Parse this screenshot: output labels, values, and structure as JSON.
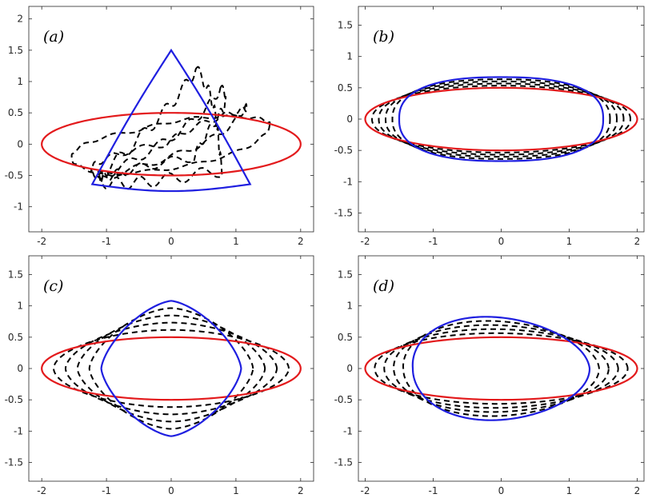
{
  "chart_data": [
    {
      "type": "line",
      "panel_label": "(a)",
      "xlim": [
        -2.2,
        2.2
      ],
      "ylim": [
        -1.4,
        2.2
      ],
      "xticks": [
        -2,
        -1,
        0,
        1,
        2
      ],
      "yticks": [
        -1,
        -0.5,
        0,
        0.5,
        1,
        1.5,
        2
      ],
      "xtick_labels": [
        "-2",
        "-1",
        "0",
        "1",
        "2"
      ],
      "ytick_labels": [
        "-1",
        "-0.5",
        "0",
        "0.5",
        "1",
        "1.5",
        "2"
      ],
      "grid": false,
      "legend": "none",
      "ellipse": {
        "center": [
          0,
          0
        ],
        "a": 2.0,
        "b": 0.5,
        "color": "#e31a1c"
      },
      "target_shape": {
        "kind": "triangle",
        "vertices": [
          [
            0,
            1.5
          ],
          [
            -1.22,
            -0.64
          ],
          [
            1.22,
            -0.64
          ]
        ],
        "bottom_dip": -0.75,
        "color": "#1f1fe0"
      },
      "intermediate_shapes": {
        "count": 4,
        "style": "dashed",
        "color": "#000000"
      }
    },
    {
      "type": "line",
      "panel_label": "(b)",
      "xlim": [
        -2.1,
        2.1
      ],
      "ylim": [
        -1.8,
        1.8
      ],
      "xticks": [
        -2,
        -1,
        0,
        1,
        2
      ],
      "yticks": [
        -1.5,
        -1,
        -0.5,
        0,
        0.5,
        1,
        1.5
      ],
      "xtick_labels": [
        "-2",
        "-1",
        "0",
        "1",
        "2"
      ],
      "ytick_labels": [
        "-1.5",
        "-1",
        "-0.5",
        "0",
        "0.5",
        "1",
        "1.5"
      ],
      "grid": false,
      "legend": "none",
      "ellipse": {
        "center": [
          0,
          0
        ],
        "a": 2.0,
        "b": 0.5,
        "color": "#e31a1c"
      },
      "target_shape": {
        "kind": "rounded-ellipse",
        "a": 1.5,
        "b": 0.67,
        "color": "#1f1fe0"
      },
      "intermediate_shapes": {
        "count": 4,
        "style": "dashed",
        "color": "#000000"
      }
    },
    {
      "type": "line",
      "panel_label": "(c)",
      "xlim": [
        -2.2,
        2.2
      ],
      "ylim": [
        -1.8,
        1.8
      ],
      "xticks": [
        -2,
        -1,
        0,
        1,
        2
      ],
      "yticks": [
        -1.5,
        -1,
        -0.5,
        0,
        0.5,
        1,
        1.5
      ],
      "xtick_labels": [
        "-2",
        "-1",
        "0",
        "1",
        "2"
      ],
      "ytick_labels": [
        "-1.5",
        "-1",
        "-0.5",
        "0",
        "0.5",
        "1",
        "1.5"
      ],
      "grid": false,
      "legend": "none",
      "ellipse": {
        "center": [
          0,
          0
        ],
        "a": 2.0,
        "b": 0.5,
        "color": "#e31a1c"
      },
      "target_shape": {
        "kind": "astroid-like",
        "a": 1.08,
        "b": 1.08,
        "color": "#1f1fe0"
      },
      "intermediate_shapes": {
        "count": 4,
        "style": "dashed",
        "color": "#000000"
      }
    },
    {
      "type": "line",
      "panel_label": "(d)",
      "xlim": [
        -2.1,
        2.1
      ],
      "ylim": [
        -1.8,
        1.8
      ],
      "xticks": [
        -2,
        -1,
        0,
        1,
        2
      ],
      "yticks": [
        -1.5,
        -1,
        -0.5,
        0,
        0.5,
        1,
        1.5
      ],
      "xtick_labels": [
        "-2",
        "-1",
        "0",
        "1",
        "2"
      ],
      "ytick_labels": [
        "-1.5",
        "-1",
        "-0.5",
        "0",
        "0.5",
        "1",
        "1.5"
      ],
      "grid": false,
      "legend": "none",
      "ellipse": {
        "center": [
          0,
          0
        ],
        "a": 2.0,
        "b": 0.5,
        "color": "#e31a1c"
      },
      "target_shape": {
        "kind": "egg",
        "center": [
          0,
          0
        ],
        "a": 1.3,
        "b": 0.82,
        "color": "#1f1fe0"
      },
      "intermediate_shapes": {
        "count": 4,
        "style": "dashed",
        "color": "#000000"
      }
    }
  ]
}
